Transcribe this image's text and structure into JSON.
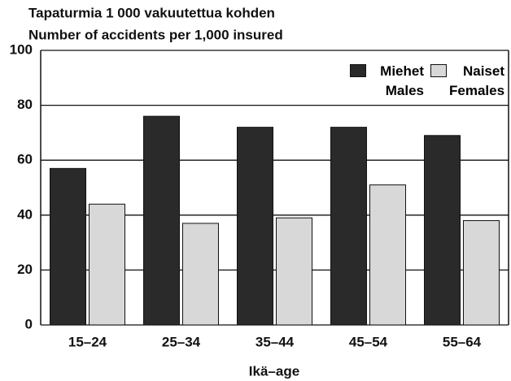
{
  "chart_data": {
    "type": "bar",
    "title": "Tapaturmia 1 000 vakuutettua kohden",
    "subtitle": "Number of accidents per 1,000 insured",
    "x_label": "Ikä–age",
    "categories": [
      "15–24",
      "25–34",
      "35–44",
      "45–54",
      "55–64"
    ],
    "series": [
      {
        "name": "Miehet Males",
        "color": "#2a2a2a",
        "values": [
          57,
          76,
          72,
          72,
          69
        ]
      },
      {
        "name": "Naiset Females",
        "color": "#d8d8d8",
        "values": [
          44,
          37,
          39,
          51,
          38
        ]
      }
    ],
    "ylim": [
      0,
      100
    ],
    "yticks": [
      0,
      20,
      40,
      60,
      80,
      100
    ],
    "grid": true,
    "legend": "top-right"
  }
}
